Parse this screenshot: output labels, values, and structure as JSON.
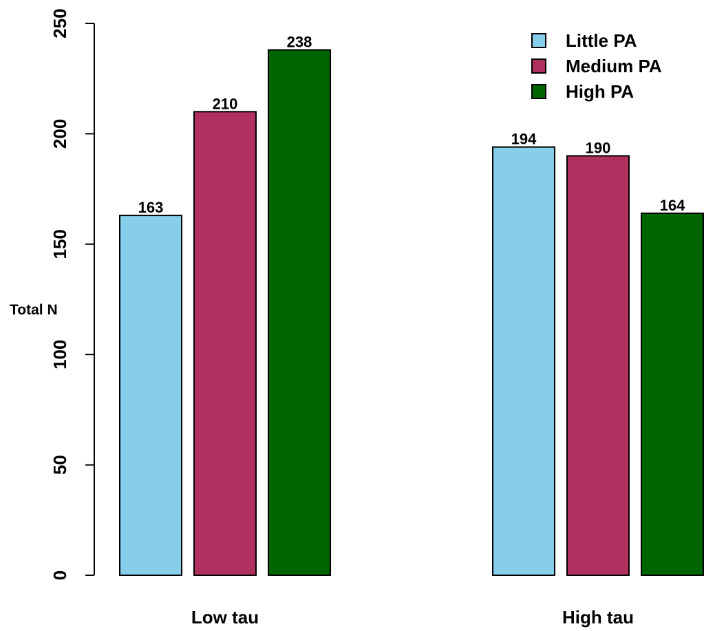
{
  "chart_data": {
    "type": "bar",
    "title": "",
    "xlabel": "",
    "ylabel": "Total N",
    "ylim": [
      0,
      250
    ],
    "yticks": [
      0,
      50,
      100,
      150,
      200,
      250
    ],
    "categories": [
      "Low tau",
      "High tau"
    ],
    "series": [
      {
        "name": "Little PA",
        "color": "#87CEEB",
        "values": [
          163,
          194
        ]
      },
      {
        "name": "Medium PA",
        "color": "#B03060",
        "values": [
          210,
          190
        ]
      },
      {
        "name": "High PA",
        "color": "#006400",
        "values": [
          238,
          164
        ]
      }
    ],
    "legend": "top-right",
    "grid": false,
    "data_labels": true
  }
}
